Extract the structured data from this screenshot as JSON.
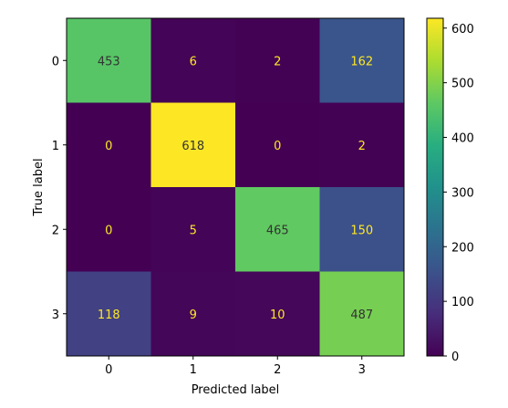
{
  "chart_data": {
    "type": "heatmap",
    "title": "",
    "xlabel": "Predicted label",
    "ylabel": "True label",
    "x_categories": [
      "0",
      "1",
      "2",
      "3"
    ],
    "y_categories": [
      "0",
      "1",
      "2",
      "3"
    ],
    "values": [
      [
        453,
        6,
        2,
        162
      ],
      [
        0,
        618,
        0,
        2
      ],
      [
        0,
        5,
        465,
        150
      ],
      [
        118,
        9,
        10,
        487
      ]
    ],
    "colormap": "viridis",
    "color_range": [
      0,
      618
    ],
    "colorbar_ticks": [
      0,
      100,
      200,
      300,
      400,
      500,
      600
    ],
    "text_colors": {
      "light_cell": "#333333",
      "dark_cell": "#fde725"
    }
  }
}
